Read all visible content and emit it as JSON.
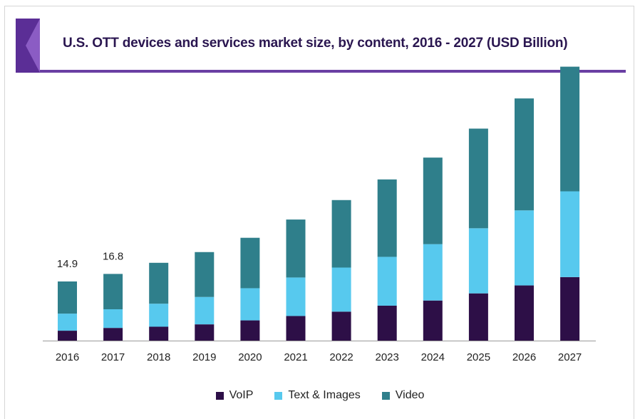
{
  "chart_data": {
    "type": "bar",
    "stacked": true,
    "title": "U.S. OTT devices and services market size, by content, 2016 - 2027 (USD Billion)",
    "xlabel": "",
    "ylabel": "",
    "categories": [
      "2016",
      "2017",
      "2018",
      "2019",
      "2020",
      "2021",
      "2022",
      "2023",
      "2024",
      "2025",
      "2026",
      "2027"
    ],
    "series": [
      {
        "name": "VoIP",
        "color": "#2d0f47",
        "values": [
          2.5,
          3.2,
          3.5,
          4.1,
          5.1,
          6.2,
          7.3,
          8.8,
          10.1,
          11.9,
          13.9,
          16.0
        ]
      },
      {
        "name": "Text & Images",
        "color": "#57c9ee",
        "values": [
          4.3,
          4.7,
          5.8,
          6.9,
          8.1,
          9.7,
          11.1,
          12.3,
          14.2,
          16.4,
          18.9,
          21.6
        ]
      },
      {
        "name": "Video",
        "color": "#2f7f8b",
        "values": [
          8.1,
          8.9,
          10.3,
          11.3,
          12.7,
          14.6,
          17.0,
          19.5,
          21.8,
          25.1,
          28.2,
          31.4
        ]
      }
    ],
    "data_labels": [
      {
        "category": "2016",
        "text": "14.9"
      },
      {
        "category": "2017",
        "text": "16.8"
      }
    ],
    "ylim": [
      0,
      70
    ],
    "grid": false,
    "legend": "bottom"
  },
  "colors": {
    "title": "#2a1650",
    "accent": "#6a3fa3",
    "logo_dark": "#3a1c6b",
    "logo_light": "#8b5cc4"
  }
}
